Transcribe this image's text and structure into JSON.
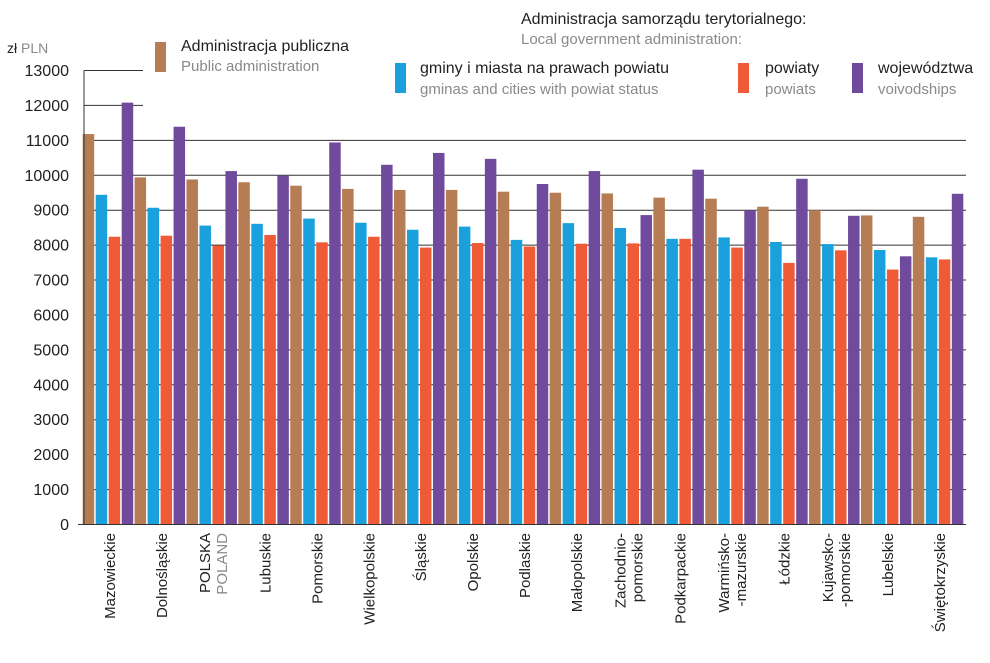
{
  "chart_data": {
    "type": "bar",
    "unit_label": "zł",
    "unit_label_en": "PLN",
    "categories": [
      [
        "Mazowieckie"
      ],
      [
        "Dolnośląskie"
      ],
      [
        "POLSKA",
        "POLAND"
      ],
      [
        "Lubuskie"
      ],
      [
        "Pomorskie"
      ],
      [
        "Wielkopolskie"
      ],
      [
        "Śląskie"
      ],
      [
        "Opolskie"
      ],
      [
        "Podlaskie"
      ],
      [
        "Małopolskie"
      ],
      [
        "Zachodnio-",
        "pomorskie"
      ],
      [
        "Podkarpackie"
      ],
      [
        "Warmińsko-",
        "-mazurskie"
      ],
      [
        "Łódzkie"
      ],
      [
        "Kujawsko-",
        "-pomorskie"
      ],
      [
        "Lubelskie"
      ],
      [
        "Świętokrzyskie"
      ]
    ],
    "series": [
      {
        "name": "Administracja publiczna",
        "name_en": "Public administration",
        "color": "#b67d55",
        "values": [
          11180,
          9940,
          9880,
          9800,
          9700,
          9610,
          9580,
          9580,
          9530,
          9500,
          9480,
          9360,
          9330,
          9100,
          9000,
          8850,
          8810
        ]
      },
      {
        "name": "gminy i miasta na prawach powiatu",
        "name_en": "gminas and cities with powiat status",
        "color": "#1aa0dc",
        "values": [
          9440,
          9070,
          8560,
          8610,
          8760,
          8640,
          8440,
          8530,
          8150,
          8630,
          8490,
          8180,
          8220,
          8090,
          8030,
          7860,
          7650
        ]
      },
      {
        "name": "powiaty",
        "name_en": "powiats",
        "color": "#ef5b36",
        "values": [
          8240,
          8270,
          7990,
          8290,
          8080,
          8240,
          7930,
          8060,
          7960,
          8040,
          8050,
          8180,
          7930,
          7490,
          7850,
          7300,
          7590
        ]
      },
      {
        "name": "województwa",
        "name_en": "voivodships",
        "color": "#704a9c",
        "values": [
          12080,
          11390,
          10120,
          9990,
          10940,
          10300,
          10640,
          10470,
          9750,
          10120,
          8860,
          10160,
          9000,
          9900,
          8840,
          7680,
          9470
        ]
      }
    ],
    "legend_group_title": "Administracja samorządu terytorialnego:",
    "legend_group_title_en": "Local government administration:",
    "ylim": [
      0,
      13000
    ],
    "yticks": [
      0,
      1000,
      2000,
      3000,
      4000,
      5000,
      6000,
      7000,
      8000,
      9000,
      10000,
      11000,
      12000,
      13000
    ],
    "grid": true,
    "legend_position": "top"
  }
}
